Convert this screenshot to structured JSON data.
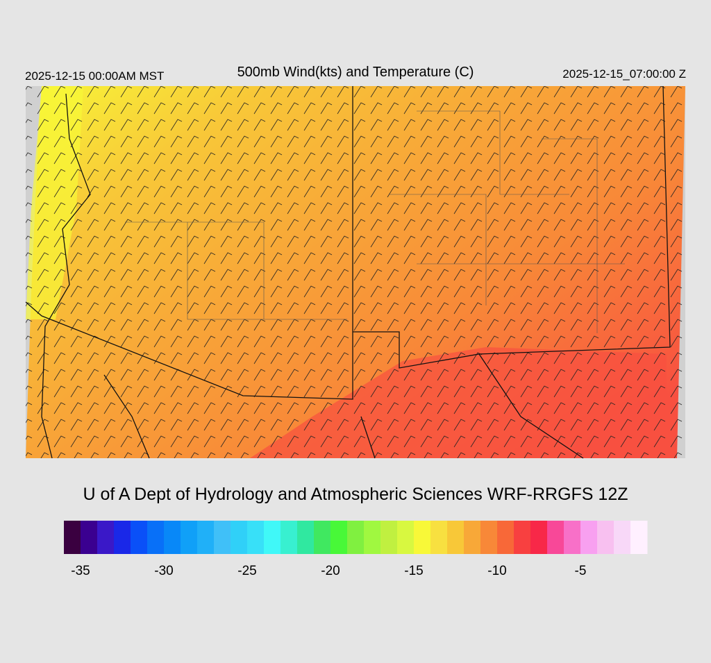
{
  "header": {
    "left": "2025-12-15 00:00AM MST",
    "title": "500mb Wind(kts) and Temperature (C)",
    "right": "2025-12-15_07:00:00 Z"
  },
  "credit": "U of A Dept of Hydrology and Atmospheric Sciences WRF-RRGFS 12Z",
  "colorbar": {
    "range": [
      -36,
      -1
    ],
    "colors": [
      "#3a0040",
      "#3a0090",
      "#3a18c8",
      "#1a28e8",
      "#0a50f8",
      "#0870f8",
      "#0888f8",
      "#10a0f8",
      "#20b0f8",
      "#40c0f8",
      "#30d0f8",
      "#38e0f8",
      "#40f8f8",
      "#38f0d0",
      "#30e8a0",
      "#40e860",
      "#48f838",
      "#80f040",
      "#a0f840",
      "#c0f040",
      "#d8f840",
      "#f8f838",
      "#f8e040",
      "#f8c838",
      "#f8a838",
      "#f88838",
      "#f86838",
      "#f84040",
      "#f82848",
      "#f84898",
      "#f870c8",
      "#f8a0f0",
      "#f8c0f0",
      "#f8d8f8",
      "#fff0ff"
    ],
    "ticks": [
      -35,
      -30,
      -25,
      -20,
      -15,
      -10,
      -5
    ]
  }
}
